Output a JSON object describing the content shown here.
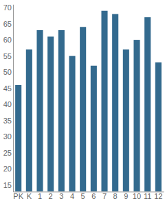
{
  "chart_data": {
    "type": "bar",
    "categories": [
      "PK",
      "K",
      "1",
      "2",
      "3",
      "4",
      "5",
      "6",
      "7",
      "8",
      "9",
      "10",
      "11",
      "12"
    ],
    "values": [
      46,
      57,
      63,
      61,
      63,
      55,
      64,
      52,
      69,
      68,
      57,
      60,
      67,
      53
    ],
    "color": "#336a8e",
    "ylim": [
      13,
      71
    ],
    "yticks": [
      15,
      20,
      25,
      30,
      35,
      40,
      45,
      50,
      55,
      60,
      65,
      70
    ],
    "grid": false
  }
}
